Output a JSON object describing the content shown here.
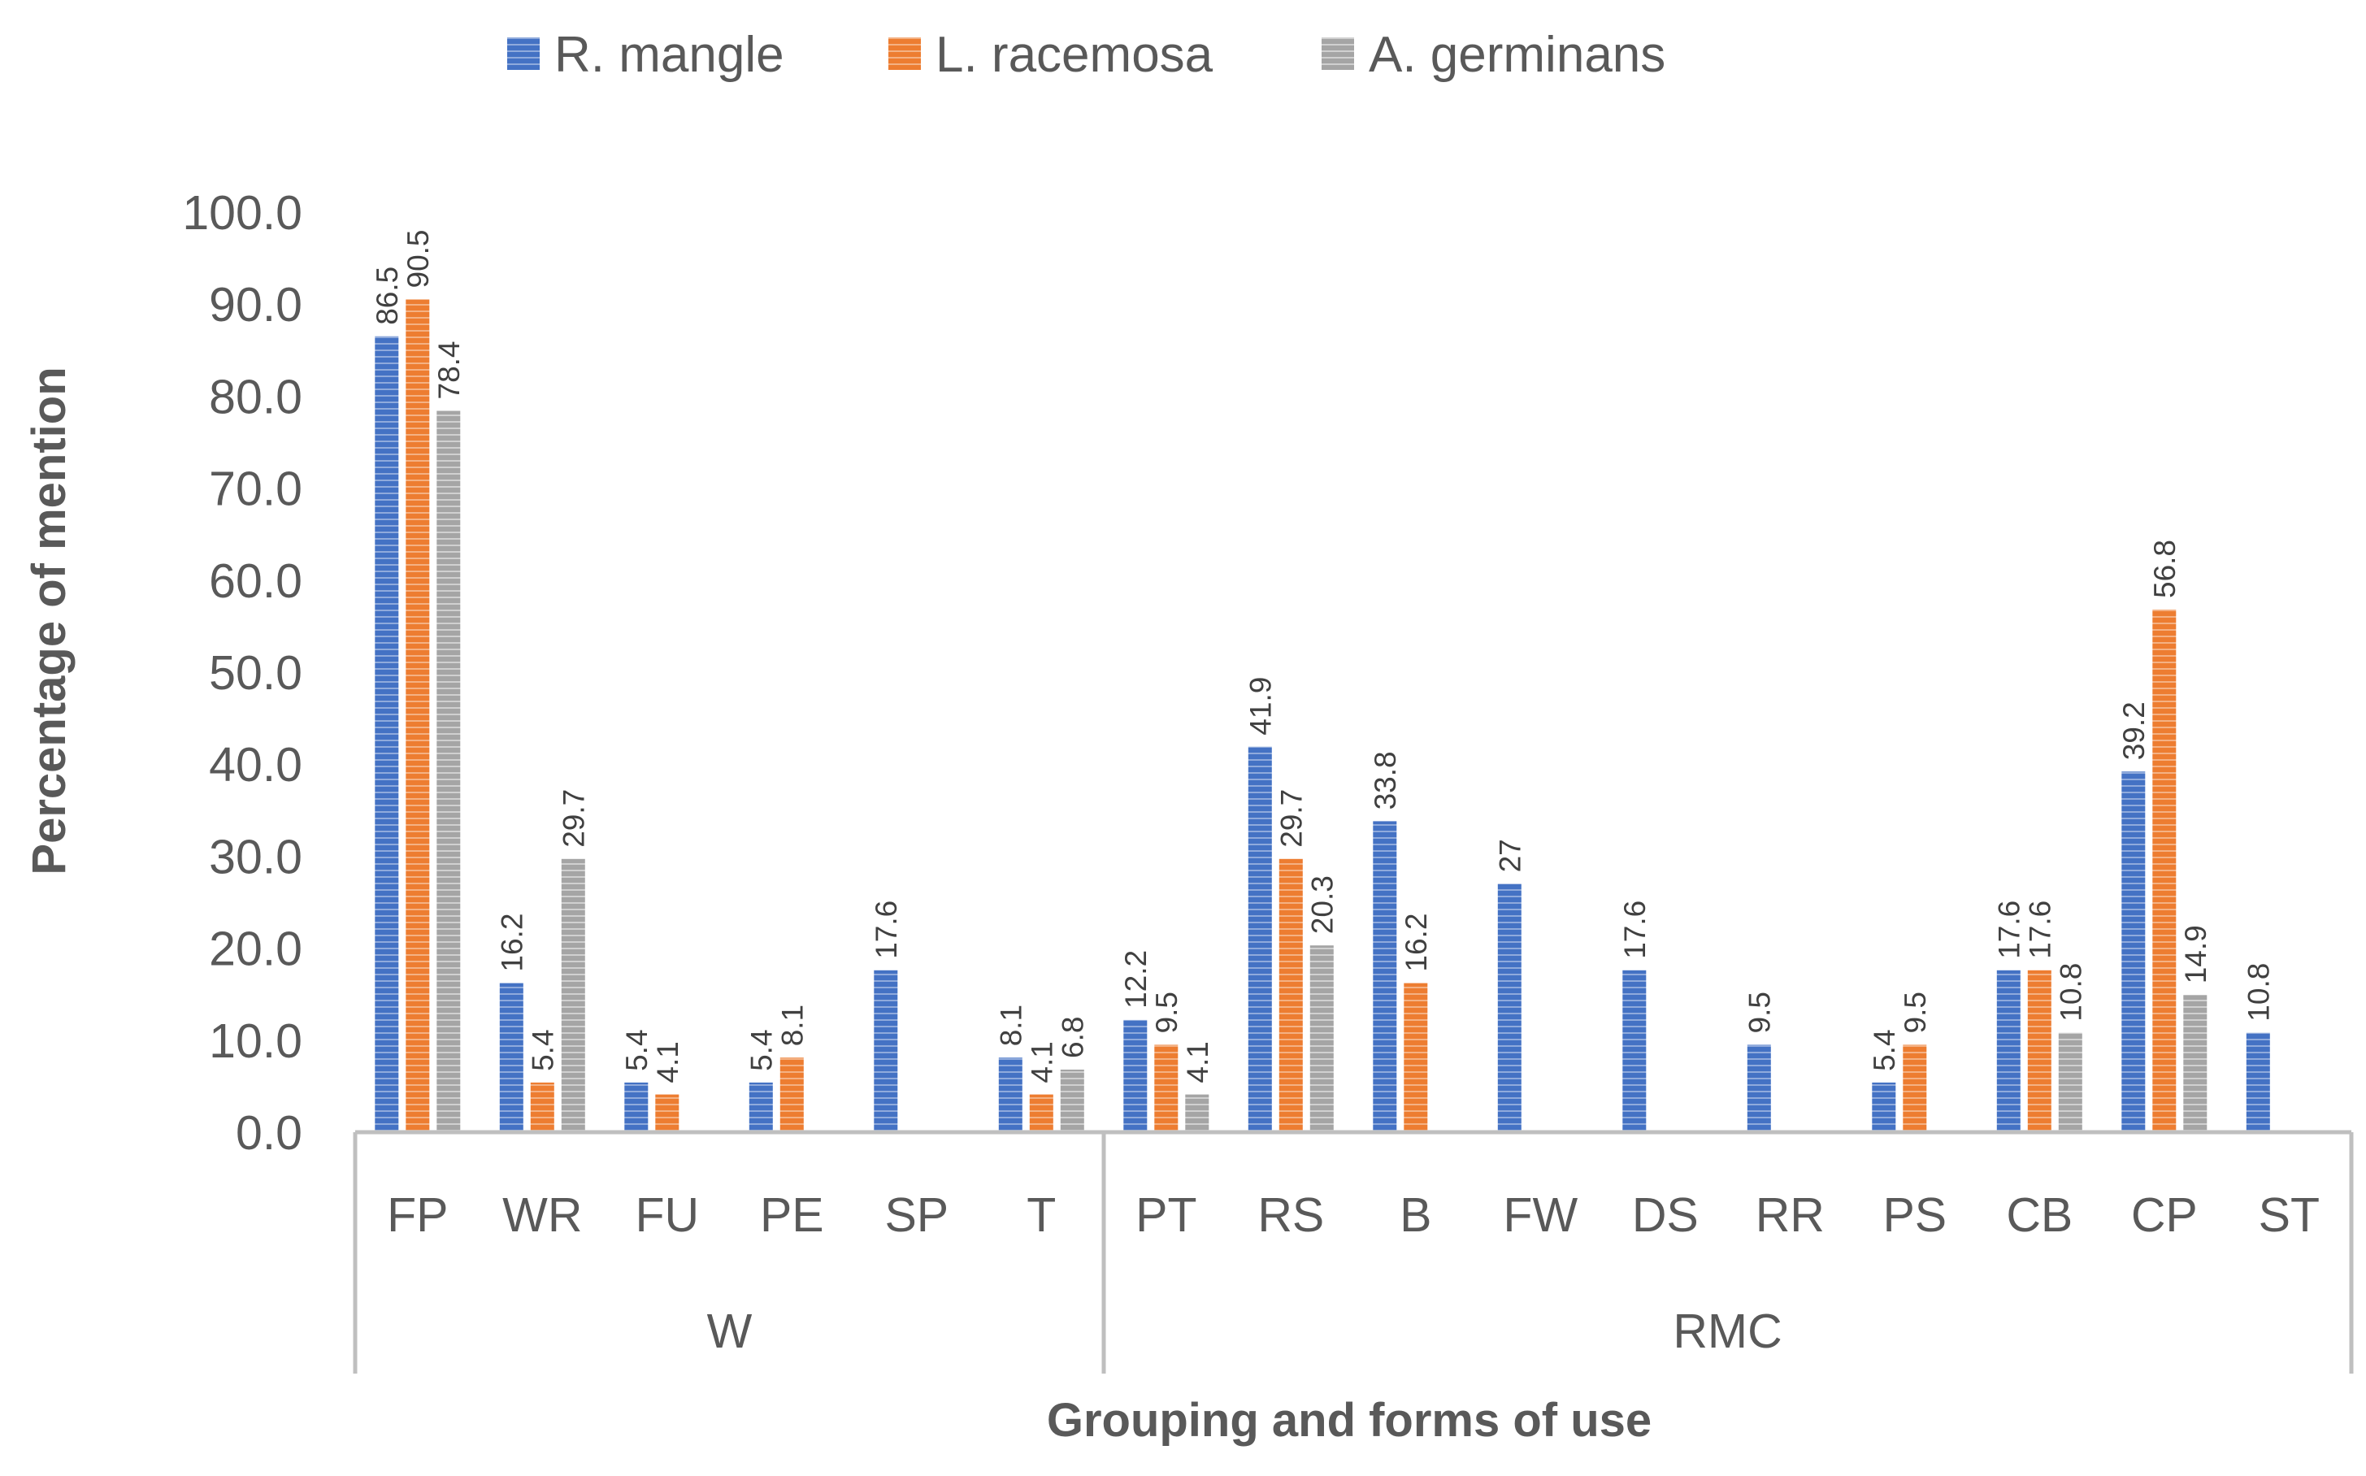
{
  "chart_data": {
    "type": "bar",
    "title": "",
    "xlabel": "Grouping and forms of use",
    "ylabel": "Percentage of  mention",
    "ylim": [
      0,
      100
    ],
    "yticks": [
      "0.0",
      "10.0",
      "20.0",
      "30.0",
      "40.0",
      "50.0",
      "60.0",
      "70.0",
      "80.0",
      "90.0",
      "100.0"
    ],
    "legend_position": "top",
    "categories": [
      "FP",
      "WR",
      "FU",
      "PE",
      "SP",
      "T",
      "PT",
      "RS",
      "B",
      "FW",
      "DS",
      "RR",
      "PS",
      "CB",
      "CP",
      "ST"
    ],
    "groups": [
      {
        "name": "W",
        "categories": [
          "FP",
          "WR",
          "FU",
          "PE",
          "SP",
          "T"
        ]
      },
      {
        "name": "RMC",
        "categories": [
          "PT",
          "RS",
          "B",
          "FW",
          "DS",
          "RR",
          "PS",
          "CB",
          "CP",
          "ST"
        ]
      }
    ],
    "series": [
      {
        "name": "R. mangle",
        "color": "#4472C4",
        "values": [
          86.5,
          16.2,
          5.4,
          5.4,
          17.6,
          8.1,
          12.2,
          41.9,
          33.8,
          27,
          17.6,
          9.5,
          5.4,
          17.6,
          39.2,
          10.8
        ],
        "labels": [
          "86.5",
          "16.2",
          "5.4",
          "5.4",
          "17.6",
          "8.1",
          "12.2",
          "41.9",
          "33.8",
          "27",
          "17.6",
          "9.5",
          "5.4",
          "17.6",
          "39.2",
          "10.8"
        ]
      },
      {
        "name": "L. racemosa",
        "color": "#ED7D31",
        "values": [
          90.5,
          5.4,
          4.1,
          8.1,
          null,
          4.1,
          9.5,
          29.7,
          16.2,
          null,
          null,
          null,
          9.5,
          17.6,
          56.8,
          null
        ],
        "labels": [
          "90.5",
          "5.4",
          "4.1",
          "8.1",
          null,
          "4.1",
          "9.5",
          "29.7",
          "16.2",
          null,
          null,
          null,
          "9.5",
          "17.6",
          "56.8",
          null
        ]
      },
      {
        "name": "A. germinans",
        "color": "#A5A5A5",
        "values": [
          78.4,
          29.7,
          null,
          null,
          null,
          6.8,
          4.1,
          20.3,
          null,
          null,
          null,
          null,
          null,
          10.8,
          14.9,
          null
        ],
        "labels": [
          "78.4",
          "29.7",
          null,
          null,
          null,
          "6.8",
          "4.1",
          "20.3",
          null,
          null,
          null,
          null,
          null,
          "10.8",
          "14.9",
          null
        ]
      }
    ]
  }
}
